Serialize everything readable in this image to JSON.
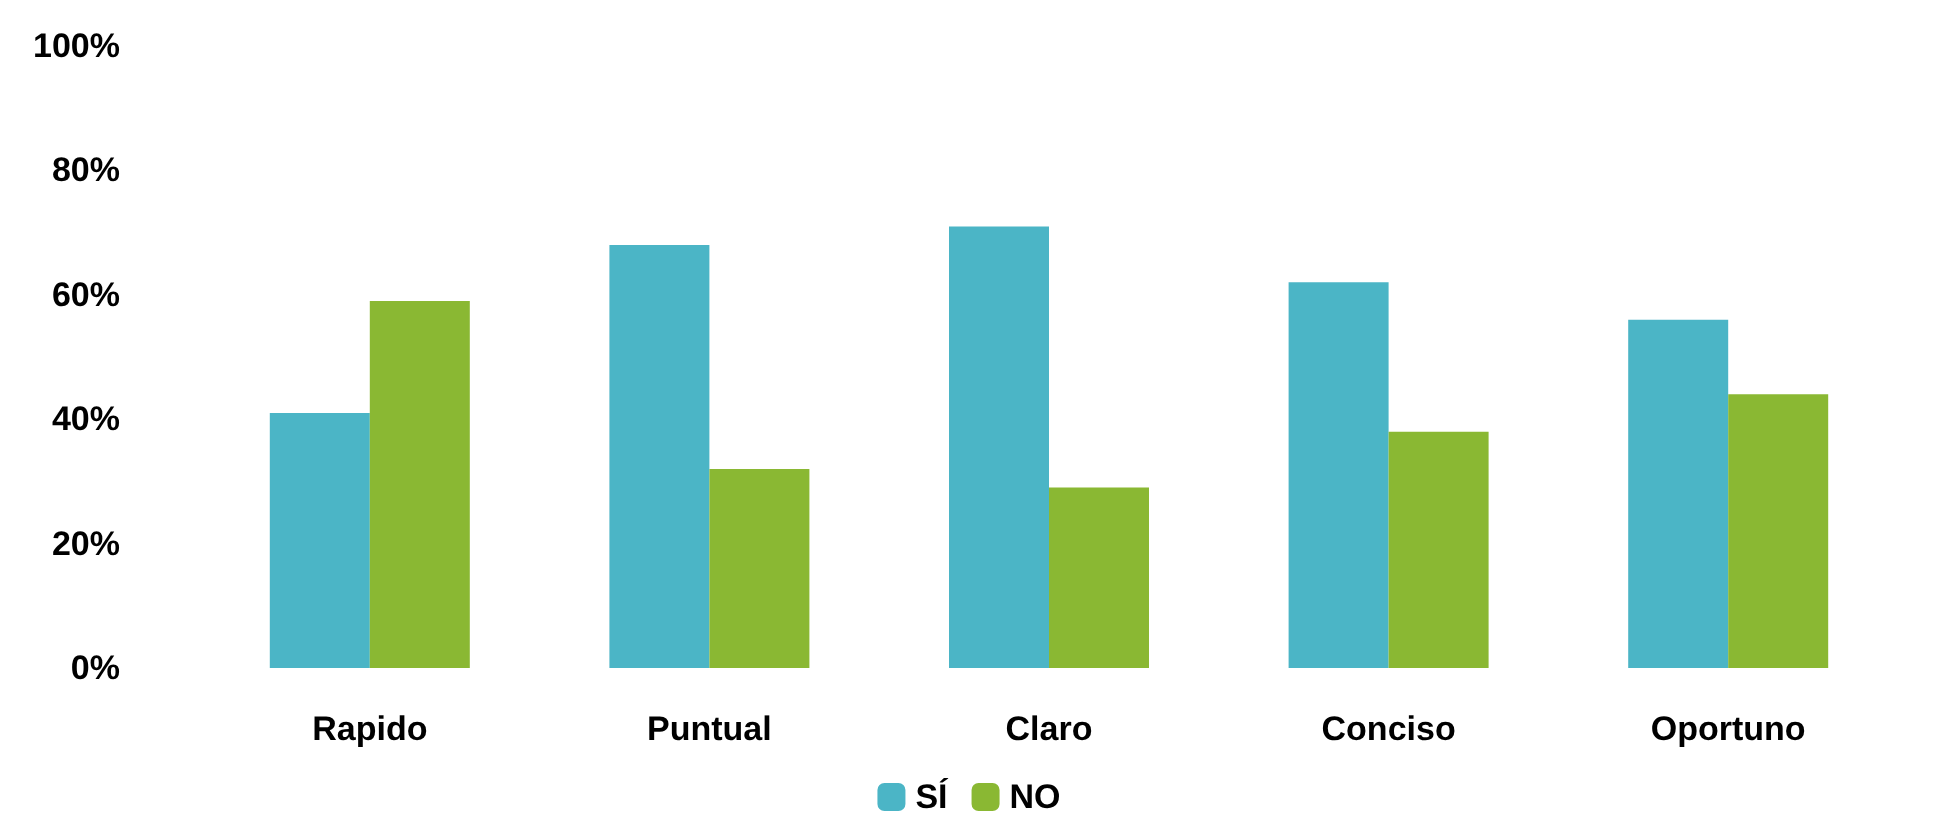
{
  "chart_data": {
    "type": "bar",
    "categories": [
      "Rapido",
      "Puntual",
      "Claro",
      "Conciso",
      "Oportuno"
    ],
    "series": [
      {
        "name": "SÍ",
        "color": "#4bb5c6",
        "values": [
          41,
          68,
          71,
          62,
          56
        ]
      },
      {
        "name": "NO",
        "color": "#8ab833",
        "values": [
          59,
          32,
          29,
          38,
          44
        ]
      }
    ],
    "ylim": [
      0,
      100
    ],
    "yticks": [
      {
        "value": 0,
        "label": "0%"
      },
      {
        "value": 20,
        "label": "20%"
      },
      {
        "value": 40,
        "label": "40%"
      },
      {
        "value": 60,
        "label": "60%"
      },
      {
        "value": 80,
        "label": "80%"
      },
      {
        "value": 100,
        "label": "100%"
      }
    ],
    "grid": false,
    "legend": "bottom"
  }
}
